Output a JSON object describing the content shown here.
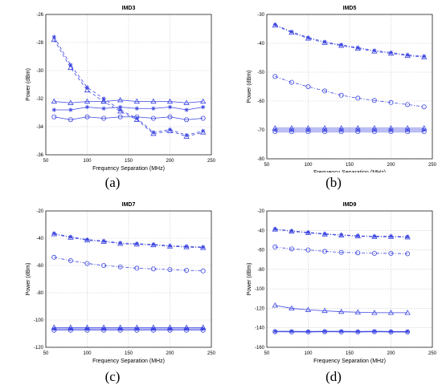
{
  "colors": {
    "series": "#3c46e0",
    "grid": "#c8c8c8",
    "axis": "#000000"
  },
  "panel_labels": [
    "(a)",
    "(b)",
    "(c)",
    "(d)"
  ],
  "chart_data": [
    {
      "type": "line",
      "title": "IMD3",
      "xlabel": "Frequency Separation (MHz)",
      "ylabel": "Power (dBm)",
      "xlim": [
        50,
        250
      ],
      "ylim": [
        -36,
        -26
      ],
      "xticks": [
        50,
        100,
        150,
        200,
        250
      ],
      "yticks": [
        -36,
        -34,
        -32,
        -30,
        -28,
        -26
      ],
      "grid": true,
      "x": [
        60,
        80,
        100,
        120,
        140,
        160,
        180,
        200,
        220,
        240
      ],
      "series": [
        {
          "marker": "star",
          "dash": "dash",
          "values": [
            -27.6,
            -29.6,
            -31.2,
            -32.0,
            -32.8,
            -33.4,
            -34.4,
            -34.2,
            -34.6,
            -34.3
          ]
        },
        {
          "marker": "triangle",
          "dash": "dash",
          "values": [
            -27.8,
            -29.8,
            -31.4,
            -32.2,
            -32.9,
            -33.5,
            -34.5,
            -34.3,
            -34.7,
            -34.4
          ]
        },
        {
          "marker": "triangle",
          "dash": "solid",
          "values": [
            -32.2,
            -32.3,
            -32.2,
            -32.2,
            -32.1,
            -32.2,
            -32.2,
            -32.2,
            -32.3,
            -32.2
          ]
        },
        {
          "marker": "star",
          "dash": "solid",
          "values": [
            -32.8,
            -32.8,
            -32.6,
            -32.7,
            -32.6,
            -32.7,
            -32.7,
            -32.6,
            -32.8,
            -32.6
          ]
        },
        {
          "marker": "circle",
          "dash": "solid",
          "values": [
            -33.3,
            -33.5,
            -33.3,
            -33.4,
            -33.3,
            -33.3,
            -33.4,
            -33.3,
            -33.5,
            -33.4
          ]
        }
      ]
    },
    {
      "type": "line",
      "title": "IMD5",
      "xlabel": "Frequency Separation (MHz)",
      "ylabel": "Power (dBm)",
      "xlim": [
        50,
        250
      ],
      "ylim": [
        -80,
        -30
      ],
      "xticks": [
        50,
        100,
        150,
        200,
        250
      ],
      "yticks": [
        -80,
        -70,
        -60,
        -50,
        -40,
        -30
      ],
      "grid": true,
      "x": [
        60,
        80,
        100,
        120,
        140,
        160,
        180,
        200,
        220,
        240
      ],
      "series": [
        {
          "marker": "star",
          "dash": "dashdot",
          "values": [
            -33.5,
            -36.0,
            -38.0,
            -39.5,
            -40.5,
            -41.5,
            -42.5,
            -43.2,
            -44.0,
            -44.5
          ]
        },
        {
          "marker": "triangle",
          "dash": "dashdot",
          "values": [
            -33.8,
            -36.3,
            -38.3,
            -39.8,
            -40.8,
            -41.8,
            -42.8,
            -43.5,
            -44.3,
            -44.8
          ]
        },
        {
          "marker": "circle",
          "dash": "dashdot",
          "values": [
            -51.5,
            -53.5,
            -55.0,
            -56.5,
            -58.0,
            -59.0,
            -59.8,
            -60.5,
            -61.2,
            -62.0
          ]
        },
        {
          "marker": "triangle",
          "dash": "solid",
          "values": [
            -69.4,
            -69.4,
            -69.4,
            -69.4,
            -69.4,
            -69.4,
            -69.4,
            -69.4,
            -69.4,
            -69.4
          ]
        },
        {
          "marker": "star",
          "dash": "solid",
          "values": [
            -70.0,
            -70.0,
            -70.0,
            -70.0,
            -70.0,
            -70.0,
            -70.0,
            -70.0,
            -70.0,
            -70.0
          ]
        },
        {
          "marker": "circle",
          "dash": "solid",
          "values": [
            -70.6,
            -70.6,
            -70.6,
            -70.6,
            -70.6,
            -70.6,
            -70.6,
            -70.6,
            -70.6,
            -70.6
          ]
        }
      ]
    },
    {
      "type": "line",
      "title": "IMD7",
      "xlabel": "Frequency Separation (MHz)",
      "ylabel": "Power (dBm)",
      "xlim": [
        50,
        250
      ],
      "ylim": [
        -120,
        -20
      ],
      "xticks": [
        50,
        100,
        150,
        200,
        250
      ],
      "yticks": [
        -120,
        -100,
        -80,
        -60,
        -40,
        -20
      ],
      "grid": true,
      "x": [
        60,
        80,
        100,
        120,
        140,
        160,
        180,
        200,
        220,
        240
      ],
      "series": [
        {
          "marker": "star",
          "dash": "dashdot",
          "values": [
            -36.5,
            -39.0,
            -41.0,
            -42.0,
            -43.5,
            -44.0,
            -44.5,
            -45.5,
            -46.0,
            -46.5
          ]
        },
        {
          "marker": "triangle",
          "dash": "dashdot",
          "values": [
            -37.0,
            -39.5,
            -41.5,
            -42.5,
            -44.0,
            -44.5,
            -45.0,
            -46.0,
            -46.5,
            -47.0
          ]
        },
        {
          "marker": "circle",
          "dash": "dashdot",
          "values": [
            -54.0,
            -56.5,
            -58.5,
            -60.0,
            -61.0,
            -62.0,
            -62.5,
            -63.0,
            -63.5,
            -64.0
          ]
        },
        {
          "marker": "triangle",
          "dash": "solid",
          "values": [
            -105.5,
            -105.5,
            -105.5,
            -105.5,
            -105.5,
            -105.5,
            -105.5,
            -105.5,
            -105.5,
            -105.5
          ]
        },
        {
          "marker": "star",
          "dash": "solid",
          "values": [
            -106.5,
            -106.5,
            -106.5,
            -106.5,
            -106.5,
            -106.5,
            -106.5,
            -106.5,
            -106.5,
            -106.5
          ]
        },
        {
          "marker": "circle",
          "dash": "solid",
          "values": [
            -107.5,
            -107.5,
            -107.5,
            -107.5,
            -107.5,
            -107.5,
            -107.5,
            -107.5,
            -107.5,
            -107.5
          ]
        }
      ]
    },
    {
      "type": "line",
      "title": "IMD9",
      "xlabel": "Frequency Separation (MHz)",
      "ylabel": "Power (dBm)",
      "xlim": [
        50,
        250
      ],
      "ylim": [
        -160,
        -20
      ],
      "xticks": [
        50,
        100,
        150,
        200,
        250
      ],
      "yticks": [
        -160,
        -140,
        -120,
        -100,
        -80,
        -60,
        -40,
        -20
      ],
      "grid": true,
      "x": [
        60,
        80,
        100,
        120,
        140,
        160,
        180,
        200,
        220
      ],
      "series": [
        {
          "marker": "star",
          "dash": "dashdot",
          "values": [
            -38.5,
            -40.5,
            -42.0,
            -43.5,
            -44.5,
            -45.5,
            -46.0,
            -46.0,
            -46.5
          ]
        },
        {
          "marker": "triangle",
          "dash": "dashdot",
          "values": [
            -39.0,
            -41.0,
            -42.5,
            -44.0,
            -45.0,
            -46.0,
            -46.5,
            -46.5,
            -47.0
          ]
        },
        {
          "marker": "circle",
          "dash": "dashdot",
          "values": [
            -57.0,
            -59.0,
            -60.0,
            -61.5,
            -62.5,
            -63.0,
            -63.5,
            -63.5,
            -64.0
          ]
        },
        {
          "marker": "triangle",
          "dash": "solid",
          "values": [
            -117.0,
            -120.0,
            -121.5,
            -122.5,
            -123.5,
            -124.0,
            -124.5,
            -124.5,
            -124.5
          ]
        },
        {
          "marker": "star",
          "dash": "solid",
          "values": [
            -143.5,
            -143.5,
            -143.8,
            -143.5,
            -143.5,
            -143.8,
            -143.5,
            -143.8,
            -143.8
          ]
        },
        {
          "marker": "circle",
          "dash": "solid",
          "values": [
            -144.0,
            -144.2,
            -144.3,
            -144.0,
            -144.2,
            -144.3,
            -144.0,
            -144.3,
            -144.3
          ]
        }
      ]
    }
  ]
}
